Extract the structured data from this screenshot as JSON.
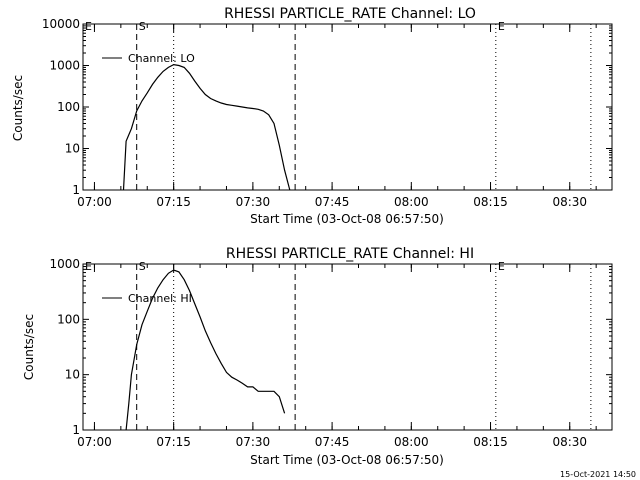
{
  "footer_timestamp": "15-Oct-2021 14:50",
  "chart_data": [
    {
      "type": "line",
      "title": "RHESSI PARTICLE_RATE Channel: LO",
      "xlabel": "Start Time (03-Oct-08 06:57:50)",
      "ylabel": "Counts/sec",
      "yscale": "log",
      "ylim": [
        1,
        10000
      ],
      "yticks": [
        1,
        10,
        100,
        1000,
        10000
      ],
      "yticklabels": [
        "1",
        "10",
        "100",
        "1000",
        "10000"
      ],
      "xlim": [
        "06:57:50",
        "08:38:00"
      ],
      "xticklabels": [
        "07:00",
        "07:15",
        "07:30",
        "07:45",
        "08:00",
        "08:15",
        "08:30"
      ],
      "legend": {
        "label": "Channel: LO",
        "position": "top-left"
      },
      "markers": [
        {
          "label": "E",
          "time": "06:57:50",
          "style": "dotted"
        },
        {
          "label": "S",
          "time": "07:08:00",
          "style": "dashed"
        },
        {
          "label": "",
          "time": "07:15:00",
          "style": "dotted"
        },
        {
          "label": "",
          "time": "07:38:00",
          "style": "dashed"
        },
        {
          "label": "E",
          "time": "08:16:00",
          "style": "dotted"
        },
        {
          "label": "",
          "time": "08:34:00",
          "style": "dotted"
        }
      ],
      "series": [
        {
          "name": "Channel: LO",
          "x": [
            "07:05:30",
            "07:06:00",
            "07:07:00",
            "07:08:00",
            "07:09:00",
            "07:10:00",
            "07:11:00",
            "07:12:00",
            "07:13:00",
            "07:14:00",
            "07:15:00",
            "07:16:00",
            "07:17:00",
            "07:18:00",
            "07:19:00",
            "07:20:00",
            "07:21:00",
            "07:22:00",
            "07:23:00",
            "07:24:00",
            "07:25:00",
            "07:26:00",
            "07:27:00",
            "07:28:00",
            "07:29:00",
            "07:30:00",
            "07:31:00",
            "07:32:00",
            "07:33:00",
            "07:34:00",
            "07:35:00",
            "07:36:00",
            "07:37:00"
          ],
          "y": [
            1,
            15,
            30,
            80,
            140,
            220,
            350,
            520,
            720,
            900,
            1050,
            1000,
            900,
            650,
            420,
            280,
            200,
            160,
            140,
            125,
            115,
            110,
            105,
            100,
            95,
            92,
            88,
            80,
            65,
            40,
            12,
            3,
            1
          ]
        }
      ]
    },
    {
      "type": "line",
      "title": "RHESSI PARTICLE_RATE Channel: HI",
      "xlabel": "Start Time (03-Oct-08 06:57:50)",
      "ylabel": "Counts/sec",
      "yscale": "log",
      "ylim": [
        1,
        1000
      ],
      "yticks": [
        1,
        10,
        100,
        1000
      ],
      "yticklabels": [
        "1",
        "10",
        "100",
        "1000"
      ],
      "xlim": [
        "06:57:50",
        "08:38:00"
      ],
      "xticklabels": [
        "07:00",
        "07:15",
        "07:30",
        "07:45",
        "08:00",
        "08:15",
        "08:30"
      ],
      "legend": {
        "label": "Channel: HI",
        "position": "top-left"
      },
      "markers": [
        {
          "label": "E",
          "time": "06:57:50",
          "style": "dotted"
        },
        {
          "label": "S",
          "time": "07:08:00",
          "style": "dashed"
        },
        {
          "label": "",
          "time": "07:15:00",
          "style": "dotted"
        },
        {
          "label": "",
          "time": "07:38:00",
          "style": "dashed"
        },
        {
          "label": "E",
          "time": "08:16:00",
          "style": "dotted"
        },
        {
          "label": "",
          "time": "08:34:00",
          "style": "dotted"
        }
      ],
      "series": [
        {
          "name": "Channel: HI",
          "x": [
            "07:06:00",
            "07:06:30",
            "07:07:00",
            "07:08:00",
            "07:09:00",
            "07:10:00",
            "07:11:00",
            "07:12:00",
            "07:13:00",
            "07:14:00",
            "07:15:00",
            "07:16:00",
            "07:17:00",
            "07:18:00",
            "07:19:00",
            "07:20:00",
            "07:21:00",
            "07:22:00",
            "07:23:00",
            "07:24:00",
            "07:25:00",
            "07:26:00",
            "07:27:00",
            "07:28:00",
            "07:29:00",
            "07:30:00",
            "07:31:00",
            "07:32:00",
            "07:33:00",
            "07:34:00",
            "07:35:00",
            "07:36:00"
          ],
          "y": [
            1,
            3,
            10,
            35,
            80,
            140,
            240,
            370,
            520,
            680,
            780,
            720,
            520,
            330,
            190,
            110,
            62,
            38,
            24,
            16,
            11,
            9,
            8,
            7,
            6,
            6,
            5,
            5,
            5,
            5,
            4,
            2
          ]
        }
      ]
    }
  ]
}
